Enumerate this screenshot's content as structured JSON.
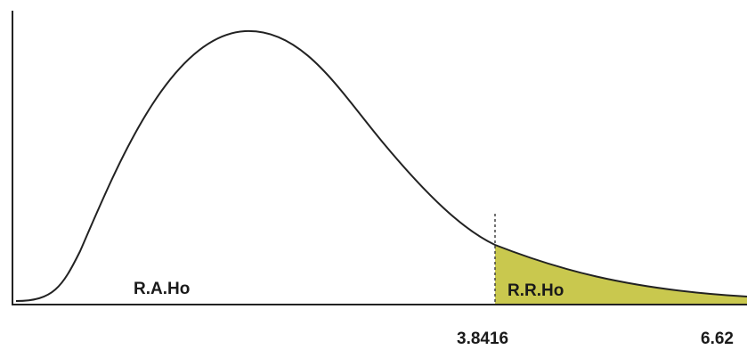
{
  "regions": {
    "acceptance": "R.A.Ho",
    "rejection": "R.R.Ho"
  },
  "axis_labels": {
    "critical": "3.8416",
    "right": "6.62"
  }
}
